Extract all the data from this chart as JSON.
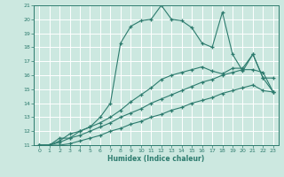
{
  "xlabel": "Humidex (Indice chaleur)",
  "bg_color": "#cce8e0",
  "line_color": "#2d7b6e",
  "grid_color": "#ffffff",
  "xlim": [
    -0.5,
    23.5
  ],
  "ylim": [
    11,
    21
  ],
  "xticks": [
    0,
    1,
    2,
    3,
    4,
    5,
    6,
    7,
    8,
    9,
    10,
    11,
    12,
    13,
    14,
    15,
    16,
    17,
    18,
    19,
    20,
    21,
    22,
    23
  ],
  "yticks": [
    11,
    12,
    13,
    14,
    15,
    16,
    17,
    18,
    19,
    20,
    21
  ],
  "line1_x": [
    0,
    1,
    2,
    3,
    4,
    5,
    6,
    7,
    8,
    9,
    10,
    11,
    12,
    13,
    14,
    15,
    16,
    17,
    18,
    19,
    20,
    21,
    22,
    23
  ],
  "line1_y": [
    11,
    11,
    11.5,
    11.5,
    12,
    12.3,
    13,
    14,
    18.3,
    19.5,
    19.9,
    20.0,
    21.0,
    20.0,
    19.9,
    19.4,
    18.3,
    18.0,
    20.5,
    17.5,
    16.3,
    17.5,
    15.8,
    15.8
  ],
  "line2_x": [
    0,
    1,
    2,
    3,
    4,
    5,
    6,
    7,
    8,
    9,
    10,
    11,
    12,
    13,
    14,
    15,
    16,
    17,
    18,
    19,
    20,
    21,
    22,
    23
  ],
  "line2_y": [
    11,
    11,
    11.3,
    11.8,
    12.0,
    12.3,
    12.6,
    13.0,
    13.5,
    14.1,
    14.6,
    15.1,
    15.7,
    16.0,
    16.2,
    16.4,
    16.6,
    16.3,
    16.1,
    16.5,
    16.5,
    17.5,
    15.8,
    14.8
  ],
  "line3_x": [
    0,
    1,
    2,
    3,
    4,
    5,
    6,
    7,
    8,
    9,
    10,
    11,
    12,
    13,
    14,
    15,
    16,
    17,
    18,
    19,
    20,
    21,
    22,
    23
  ],
  "line3_y": [
    11,
    11,
    11.2,
    11.5,
    11.7,
    12.0,
    12.3,
    12.6,
    13.0,
    13.3,
    13.6,
    14.0,
    14.3,
    14.6,
    14.9,
    15.2,
    15.5,
    15.7,
    16.0,
    16.2,
    16.4,
    16.4,
    16.2,
    14.8
  ],
  "line4_x": [
    0,
    1,
    2,
    3,
    4,
    5,
    6,
    7,
    8,
    9,
    10,
    11,
    12,
    13,
    14,
    15,
    16,
    17,
    18,
    19,
    20,
    21,
    22,
    23
  ],
  "line4_y": [
    11,
    11,
    11,
    11.1,
    11.3,
    11.5,
    11.7,
    12.0,
    12.2,
    12.5,
    12.7,
    13.0,
    13.2,
    13.5,
    13.7,
    14.0,
    14.2,
    14.4,
    14.7,
    14.9,
    15.1,
    15.3,
    14.9,
    14.8
  ]
}
